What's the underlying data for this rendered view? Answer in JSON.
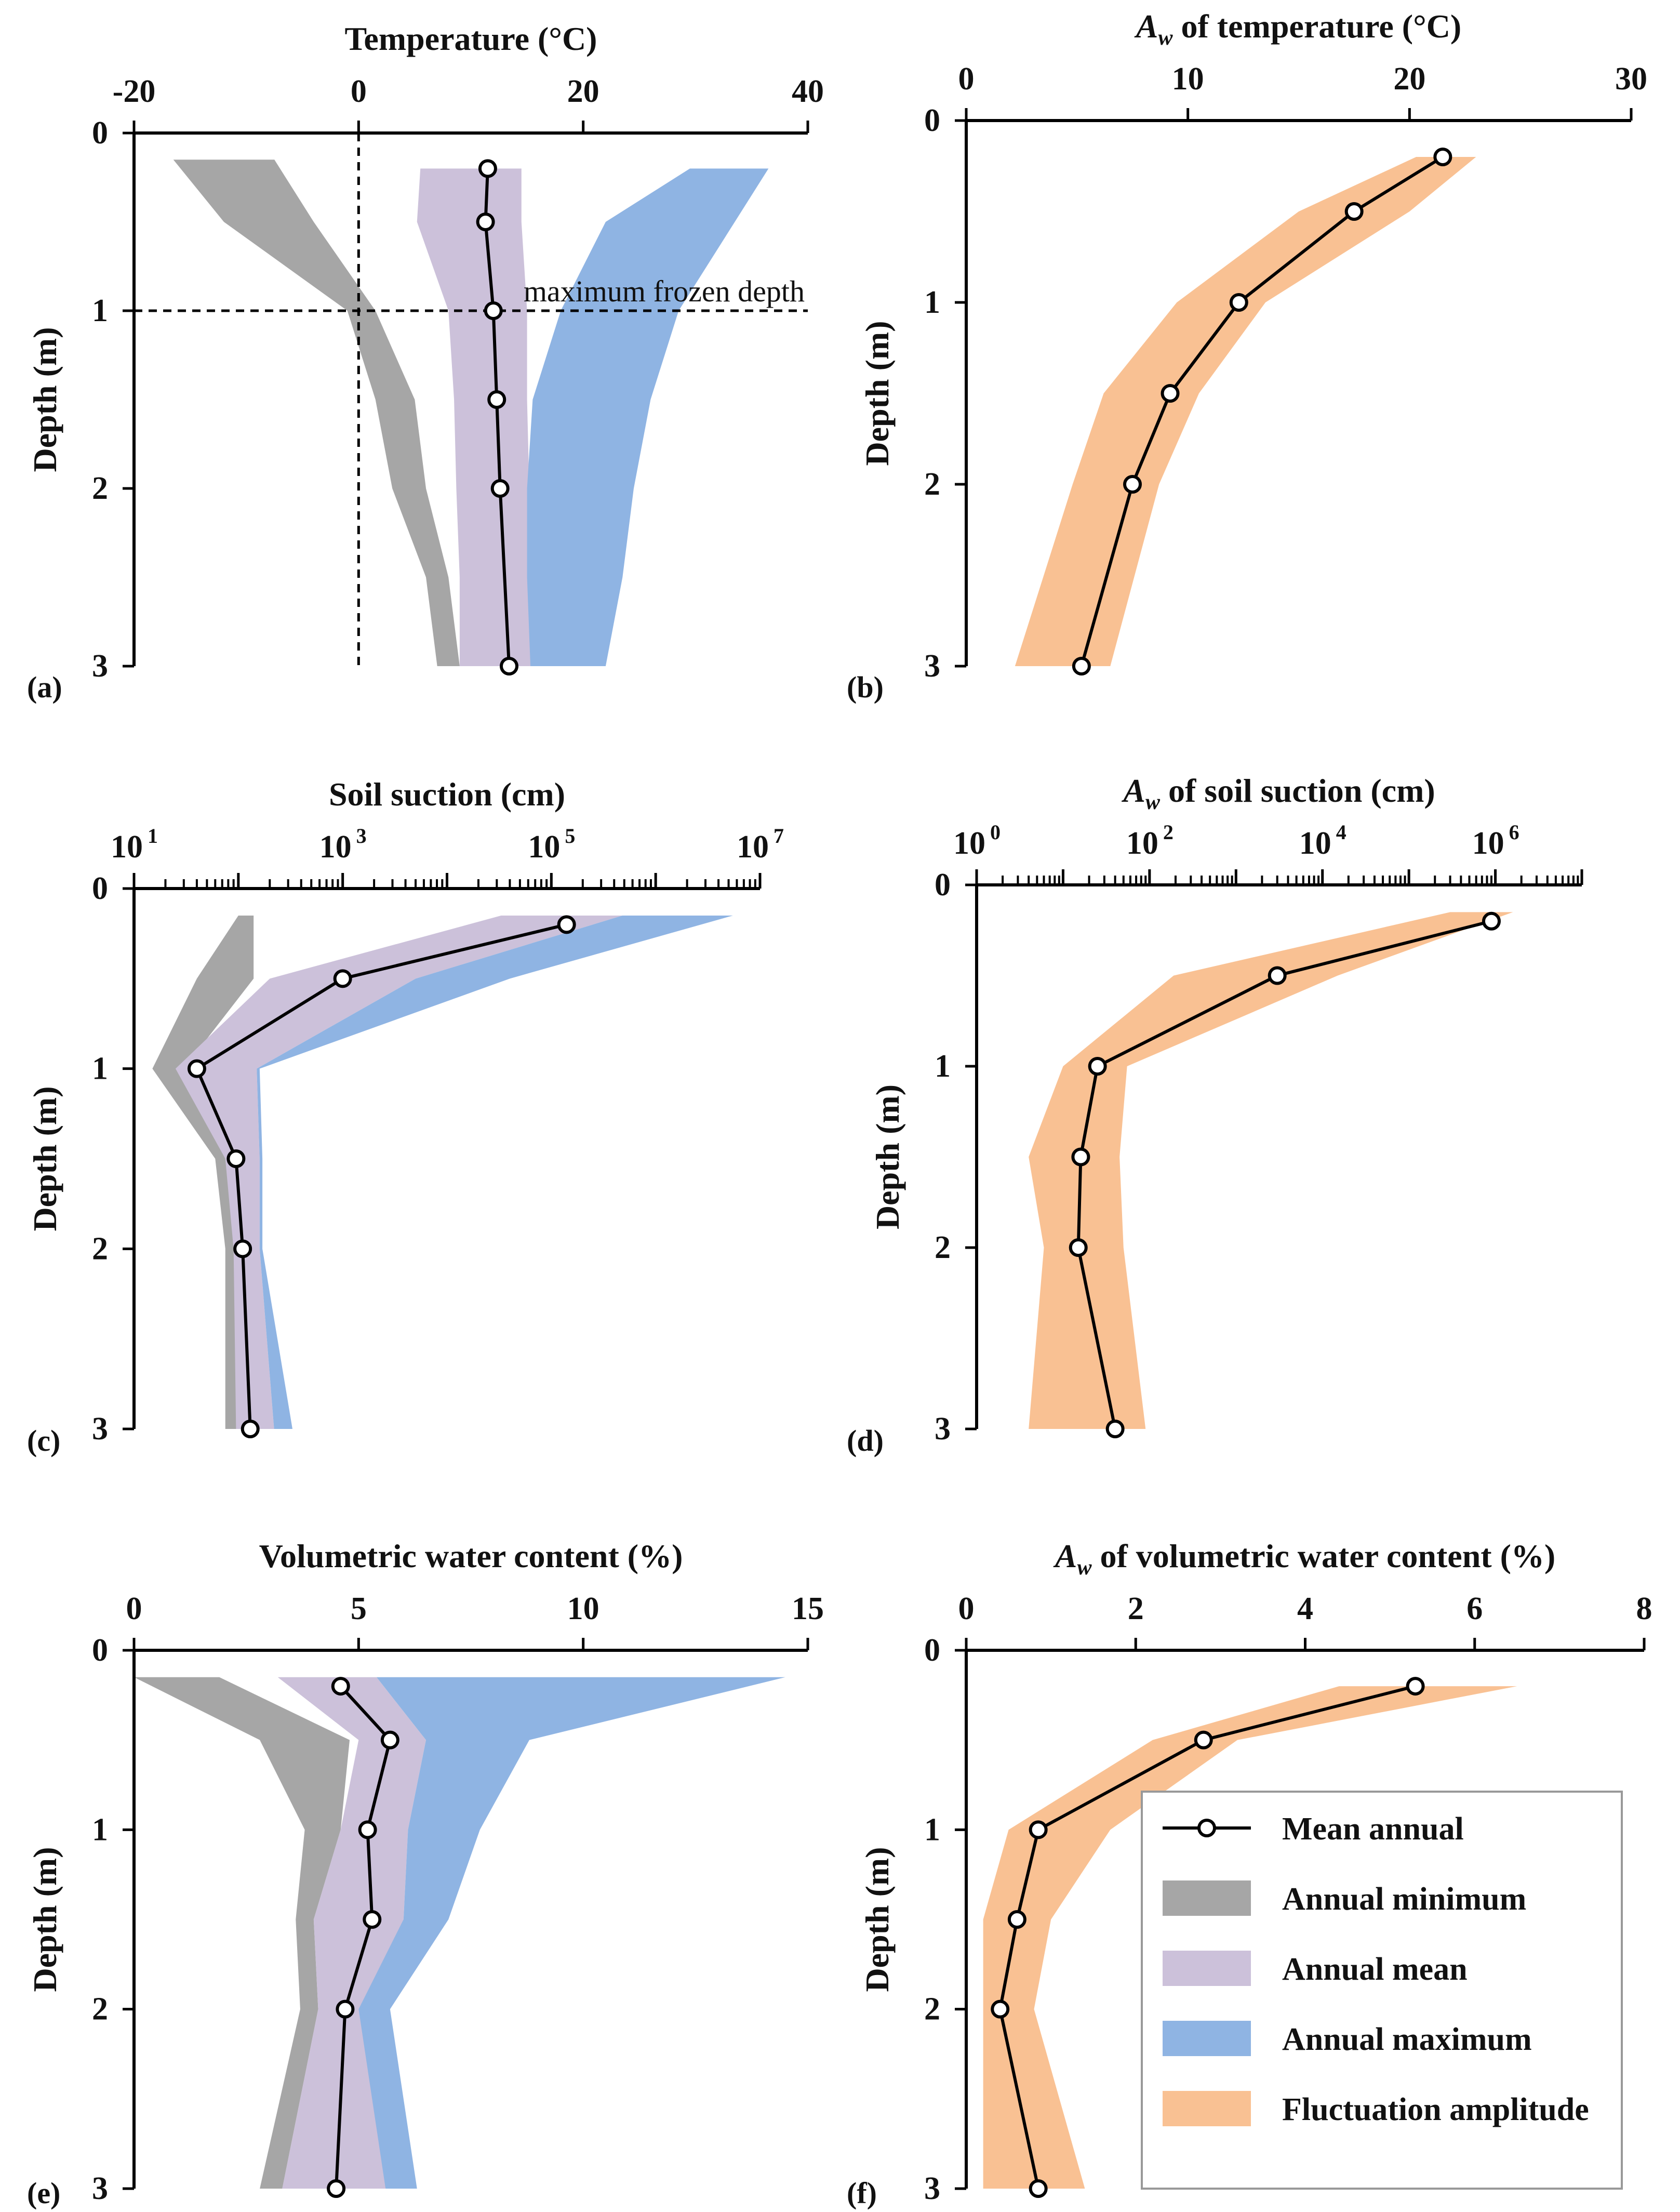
{
  "colors": {
    "minimum": "#A6A6A6",
    "mean_band": "#CCC1DA",
    "maximum": "#8FB4E3",
    "amplitude": "#F9C193",
    "line": "#000000"
  },
  "legend": {
    "items": [
      {
        "key": "mean_line",
        "label": "Mean annual"
      },
      {
        "key": "minimum",
        "label": "Annual minimum"
      },
      {
        "key": "mean_band",
        "label": "Annual mean"
      },
      {
        "key": "maximum",
        "label": "Annual maximum"
      },
      {
        "key": "amplitude",
        "label": "Fluctuation amplitude"
      }
    ]
  },
  "chart_data": [
    {
      "id": "a",
      "panel_label": "(a)",
      "type": "area",
      "title": "Temperature (°C)",
      "ylabel": "Depth (m)",
      "xscale": "linear",
      "xlim": [
        -20,
        40
      ],
      "xticks": [
        {
          "v": -20,
          "label": "-20"
        },
        {
          "v": 0,
          "label": "0"
        },
        {
          "v": 20,
          "label": "20"
        },
        {
          "v": 40,
          "label": "40"
        }
      ],
      "ylim": [
        0,
        3
      ],
      "yticks": [
        0,
        1,
        2,
        3
      ],
      "annotation": {
        "text": "maximum frozen depth",
        "depth": 1.0,
        "vline_x": 0
      },
      "bands": [
        {
          "name": "Annual minimum",
          "color_key": "minimum",
          "left": [
            [
              -16.5,
              0.15
            ],
            [
              -12,
              0.5
            ],
            [
              -1,
              1.0
            ],
            [
              1.5,
              1.5
            ],
            [
              3,
              2.0
            ],
            [
              6,
              2.5
            ],
            [
              7,
              3.0
            ]
          ],
          "right": [
            [
              -7.5,
              0.15
            ],
            [
              -4,
              0.5
            ],
            [
              1.5,
              1.0
            ],
            [
              5,
              1.5
            ],
            [
              6,
              2.0
            ],
            [
              8,
              2.5
            ],
            [
              9,
              3.0
            ]
          ]
        },
        {
          "name": "Annual mean",
          "color_key": "mean_band",
          "left": [
            [
              5.5,
              0.2
            ],
            [
              5.2,
              0.5
            ],
            [
              8,
              1.0
            ],
            [
              8.5,
              1.5
            ],
            [
              8.7,
              2.0
            ],
            [
              9,
              2.5
            ],
            [
              9,
              3.0
            ]
          ],
          "right": [
            [
              14.5,
              0.2
            ],
            [
              14.5,
              0.5
            ],
            [
              15,
              1.0
            ],
            [
              15,
              1.5
            ],
            [
              15.2,
              2.0
            ],
            [
              15.2,
              2.5
            ],
            [
              15.3,
              3.0
            ]
          ]
        },
        {
          "name": "Annual maximum",
          "color_key": "maximum",
          "left": [
            [
              29.5,
              0.2
            ],
            [
              22,
              0.5
            ],
            [
              18,
              1.0
            ],
            [
              15.5,
              1.5
            ],
            [
              15,
              2.0
            ],
            [
              15,
              2.5
            ],
            [
              15.3,
              3.0
            ]
          ],
          "right": [
            [
              36.5,
              0.2
            ],
            [
              33.5,
              0.5
            ],
            [
              28.5,
              1.0
            ],
            [
              26,
              1.5
            ],
            [
              24.5,
              2.0
            ],
            [
              23.5,
              2.5
            ],
            [
              22,
              3.0
            ]
          ]
        }
      ],
      "line": {
        "name": "Mean annual",
        "x": [
          11.5,
          11.3,
          12,
          12.3,
          12.6,
          13.4
        ],
        "y": [
          0.2,
          0.5,
          1.0,
          1.5,
          2.0,
          3.0
        ]
      }
    },
    {
      "id": "b",
      "panel_label": "(b)",
      "type": "area",
      "title_prefix": "A",
      "title_sub": "w",
      "title_rest": " of temperature (°C)",
      "ylabel": "Depth (m)",
      "xscale": "linear",
      "xlim": [
        0,
        30
      ],
      "xticks": [
        {
          "v": 0,
          "label": "0"
        },
        {
          "v": 10,
          "label": "10"
        },
        {
          "v": 20,
          "label": "20"
        },
        {
          "v": 30,
          "label": "30"
        }
      ],
      "ylim": [
        0,
        3
      ],
      "yticks": [
        0,
        1,
        2,
        3
      ],
      "bands": [
        {
          "name": "Fluctuation amplitude",
          "color_key": "amplitude",
          "left": [
            [
              20.3,
              0.2
            ],
            [
              15,
              0.5
            ],
            [
              9.5,
              1.0
            ],
            [
              6.2,
              1.5
            ],
            [
              4.8,
              2.0
            ],
            [
              2.2,
              3.0
            ]
          ],
          "right": [
            [
              23,
              0.2
            ],
            [
              20,
              0.5
            ],
            [
              13.5,
              1.0
            ],
            [
              10.5,
              1.5
            ],
            [
              8.7,
              2.0
            ],
            [
              6.5,
              3.0
            ]
          ]
        }
      ],
      "line": {
        "name": "Mean annual",
        "x": [
          21.5,
          17.5,
          12.3,
          9.2,
          7.5,
          5.2
        ],
        "y": [
          0.2,
          0.5,
          1.0,
          1.5,
          2.0,
          3.0
        ]
      }
    },
    {
      "id": "c",
      "panel_label": "(c)",
      "type": "area",
      "title": "Soil suction (cm)",
      "ylabel": "Depth (m)",
      "xscale": "log",
      "xlim": [
        10,
        10000000
      ],
      "xticks": [
        {
          "v": 10,
          "label": "10",
          "sup": "1"
        },
        {
          "v": 1000,
          "label": "10",
          "sup": "3"
        },
        {
          "v": 100000,
          "label": "10",
          "sup": "5"
        },
        {
          "v": 10000000,
          "label": "10",
          "sup": "7"
        }
      ],
      "ylim": [
        0,
        3
      ],
      "yticks": [
        0,
        1,
        2,
        3
      ],
      "bands": [
        {
          "name": "Annual minimum",
          "color_key": "minimum",
          "left": [
            [
              100,
              0.15
            ],
            [
              40,
              0.5
            ],
            [
              15,
              1.0
            ],
            [
              60,
              1.5
            ],
            [
              75,
              2.0
            ],
            [
              75,
              3.0
            ]
          ],
          "right": [
            [
              140,
              0.15
            ],
            [
              140,
              0.5
            ],
            [
              30,
              1.0
            ],
            [
              100,
              1.5
            ],
            [
              130,
              2.0
            ],
            [
              130,
              3.0
            ]
          ]
        },
        {
          "name": "Annual mean",
          "color_key": "mean_band",
          "left": [
            [
              33000,
              0.15
            ],
            [
              200,
              0.5
            ],
            [
              25,
              1.0
            ],
            [
              75,
              1.5
            ],
            [
              90,
              2.0
            ],
            [
              95,
              3.0
            ]
          ],
          "right": [
            [
              480000,
              0.15
            ],
            [
              5000,
              0.5
            ],
            [
              150,
              1.0
            ],
            [
              160,
              1.5
            ],
            [
              160,
              2.0
            ],
            [
              220,
              3.0
            ]
          ]
        },
        {
          "name": "Annual maximum",
          "color_key": "maximum",
          "left": [
            [
              480000,
              0.15
            ],
            [
              5000,
              0.5
            ],
            [
              150,
              1.0
            ],
            [
              160,
              1.5
            ],
            [
              160,
              2.0
            ],
            [
              220,
              3.0
            ]
          ],
          "right": [
            [
              5500000,
              0.15
            ],
            [
              40000,
              0.5
            ],
            [
              160,
              1.0
            ],
            [
              170,
              1.5
            ],
            [
              170,
              2.0
            ],
            [
              330,
              3.0
            ]
          ]
        }
      ],
      "line": {
        "name": "Mean annual",
        "x": [
          140000,
          1000,
          40,
          95,
          110,
          130
        ],
        "y": [
          0.2,
          0.5,
          1.0,
          1.5,
          2.0,
          3.0
        ]
      }
    },
    {
      "id": "d",
      "panel_label": "(d)",
      "type": "area",
      "title_prefix": "A",
      "title_sub": "w",
      "title_rest": " of soil suction (cm)",
      "ylabel": "Depth (m)",
      "xscale": "log",
      "xlim": [
        1,
        10000000
      ],
      "xticks": [
        {
          "v": 1,
          "label": "10",
          "sup": "0"
        },
        {
          "v": 100,
          "label": "10",
          "sup": "2"
        },
        {
          "v": 10000,
          "label": "10",
          "sup": "4"
        },
        {
          "v": 1000000,
          "label": "10",
          "sup": "6"
        }
      ],
      "ylim": [
        0,
        3
      ],
      "yticks": [
        0,
        1,
        2,
        3
      ],
      "bands": [
        {
          "name": "Fluctuation amplitude",
          "color_key": "amplitude",
          "left": [
            [
              300000,
              0.15
            ],
            [
              190,
              0.5
            ],
            [
              10,
              1.0
            ],
            [
              4,
              1.5
            ],
            [
              6,
              2.0
            ],
            [
              4,
              3.0
            ]
          ],
          "right": [
            [
              1600000,
              0.15
            ],
            [
              15000,
              0.5
            ],
            [
              55,
              1.0
            ],
            [
              45,
              1.5
            ],
            [
              50,
              2.0
            ],
            [
              90,
              3.0
            ]
          ]
        }
      ],
      "line": {
        "name": "Mean annual",
        "x": [
          900000,
          3000,
          25,
          16,
          15,
          40
        ],
        "y": [
          0.2,
          0.5,
          1.0,
          1.5,
          2.0,
          3.0
        ]
      }
    },
    {
      "id": "e",
      "panel_label": "(e)",
      "type": "area",
      "title": "Volumetric water content (%)",
      "ylabel": "Depth (m)",
      "xscale": "linear",
      "xlim": [
        0,
        15
      ],
      "xticks": [
        {
          "v": 0,
          "label": "0"
        },
        {
          "v": 5,
          "label": "5"
        },
        {
          "v": 10,
          "label": "10"
        },
        {
          "v": 15,
          "label": "15"
        }
      ],
      "ylim": [
        0,
        3
      ],
      "yticks": [
        0,
        1,
        2,
        3
      ],
      "bands": [
        {
          "name": "Annual minimum",
          "color_key": "minimum",
          "left": [
            [
              0,
              0.15
            ],
            [
              2.8,
              0.5
            ],
            [
              3.8,
              1.0
            ],
            [
              3.6,
              1.5
            ],
            [
              3.7,
              2.0
            ],
            [
              2.8,
              3.0
            ]
          ],
          "right": [
            [
              1.9,
              0.15
            ],
            [
              4.8,
              0.5
            ],
            [
              4.6,
              1.0
            ],
            [
              4,
              1.5
            ],
            [
              4.1,
              2.0
            ],
            [
              3.3,
              3.0
            ]
          ]
        },
        {
          "name": "Annual mean",
          "color_key": "mean_band",
          "left": [
            [
              3.2,
              0.15
            ],
            [
              5,
              0.5
            ],
            [
              4.6,
              1.0
            ],
            [
              4,
              1.5
            ],
            [
              4.1,
              2.0
            ],
            [
              3.3,
              3.0
            ]
          ],
          "right": [
            [
              5.4,
              0.15
            ],
            [
              6.5,
              0.5
            ],
            [
              6.1,
              1.0
            ],
            [
              6,
              1.5
            ],
            [
              5.5,
              2.0
            ],
            [
              5.6,
              3.0
            ]
          ]
        },
        {
          "name": "Annual maximum",
          "color_key": "maximum",
          "left": [
            [
              5.4,
              0.15
            ],
            [
              6.5,
              0.5
            ],
            [
              6.1,
              1.0
            ],
            [
              6,
              1.5
            ],
            [
              5,
              2.0
            ],
            [
              5.6,
              3.0
            ]
          ],
          "right": [
            [
              14.5,
              0.15
            ],
            [
              8.8,
              0.5
            ],
            [
              7.7,
              1.0
            ],
            [
              7,
              1.5
            ],
            [
              5.7,
              2.0
            ],
            [
              6.3,
              3.0
            ]
          ]
        }
      ],
      "line": {
        "name": "Mean annual",
        "x": [
          4.6,
          5.7,
          5.2,
          5.3,
          4.7,
          4.5
        ],
        "y": [
          0.2,
          0.5,
          1.0,
          1.5,
          2.0,
          3.0
        ]
      }
    },
    {
      "id": "f",
      "panel_label": "(f)",
      "type": "area",
      "title_prefix": "A",
      "title_sub": "w",
      "title_rest": " of volumetric water content (%)",
      "ylabel": "Depth (m)",
      "xscale": "linear",
      "xlim": [
        0,
        8
      ],
      "xticks": [
        {
          "v": 0,
          "label": "0"
        },
        {
          "v": 2,
          "label": "2"
        },
        {
          "v": 4,
          "label": "4"
        },
        {
          "v": 6,
          "label": "6"
        },
        {
          "v": 8,
          "label": "8"
        }
      ],
      "ylim": [
        0,
        3
      ],
      "yticks": [
        0,
        1,
        2,
        3
      ],
      "bands": [
        {
          "name": "Fluctuation amplitude",
          "color_key": "amplitude",
          "left": [
            [
              4.4,
              0.2
            ],
            [
              2.2,
              0.5
            ],
            [
              0.5,
              1.0
            ],
            [
              0.2,
              1.5
            ],
            [
              0.2,
              2.0
            ],
            [
              0.2,
              3.0
            ]
          ],
          "right": [
            [
              6.5,
              0.2
            ],
            [
              3.2,
              0.5
            ],
            [
              1.7,
              1.0
            ],
            [
              1,
              1.5
            ],
            [
              0.8,
              2.0
            ],
            [
              1.4,
              3.0
            ]
          ]
        }
      ],
      "line": {
        "name": "Mean annual",
        "x": [
          5.3,
          2.8,
          0.85,
          0.6,
          0.4,
          0.85
        ],
        "y": [
          0.2,
          0.5,
          1.0,
          1.5,
          2.0,
          3.0
        ]
      }
    }
  ]
}
